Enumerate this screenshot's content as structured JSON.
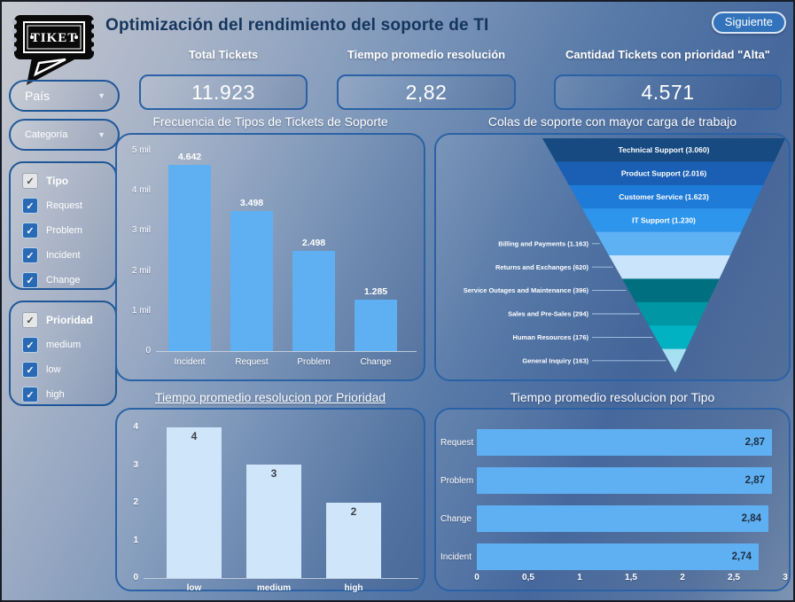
{
  "header": {
    "logo_text": "TIKET",
    "title": "Optimización del rendimiento del soporte de TI",
    "next_button_label": "Siguiente"
  },
  "kpis": [
    {
      "label": "Total Tickets",
      "value": "11.923"
    },
    {
      "label": "Tiempo promedio resolución",
      "value": "2,82"
    },
    {
      "label": "Cantidad Tickets con prioridad \"Alta\"",
      "value": "4.571"
    }
  ],
  "filters": {
    "pais_label": "País",
    "categoria_label": "Categoría",
    "tipo": {
      "header": "Tipo",
      "options": [
        "Request",
        "Problem",
        "Incident",
        "Change"
      ]
    },
    "prioridad": {
      "header": "Prioridad",
      "options": [
        "medium",
        "low",
        "high"
      ]
    }
  },
  "colors": {
    "bar_blue": "#5fb0f2",
    "bar_light": "#cfe6fa",
    "panel_border": "#2a62a5",
    "button_bg": "#3273bb"
  },
  "chart_data": [
    {
      "type": "bar",
      "title": "Frecuencia de Tipos de Tickets de Soporte",
      "categories": [
        "Incident",
        "Request",
        "Problem",
        "Change"
      ],
      "values": [
        4642,
        3498,
        2498,
        1285
      ],
      "value_labels": [
        "4.642",
        "3.498",
        "2.498",
        "1.285"
      ],
      "ytick_values": [
        5000,
        4000,
        3000,
        2000,
        1000,
        0
      ],
      "ytick_labels": [
        "5 mil",
        "4 mil",
        "3 mil",
        "2 mil",
        "1 mil",
        "0"
      ],
      "ylim": [
        0,
        5000
      ],
      "bar_color": "#5fb0f2",
      "value_label_color": "#ffffff"
    },
    {
      "type": "funnel",
      "title": "Colas de soporte con mayor carga de trabajo",
      "segments": [
        {
          "label": "Technical Support (3.060)",
          "value": 3060,
          "color": "#174a80",
          "label_inside": true
        },
        {
          "label": "Product Support (2.016)",
          "value": 2016,
          "color": "#1a5fb4",
          "label_inside": true
        },
        {
          "label": "Customer Service (1.623)",
          "value": 1623,
          "color": "#1e7bd7",
          "label_inside": true
        },
        {
          "label": "IT Support (1.230)",
          "value": 1230,
          "color": "#2d95ec",
          "label_inside": true
        },
        {
          "label": "Billing and Payments (1.163)",
          "value": 1163,
          "color": "#5eb2f4",
          "label_inside": false
        },
        {
          "label": "Returns and Exchanges (620)",
          "value": 620,
          "color": "#c9e4fb",
          "label_inside": false
        },
        {
          "label": "Service Outages and Maintenance (396)",
          "value": 396,
          "color": "#007080",
          "label_inside": false
        },
        {
          "label": "Sales and Pre-Sales (294)",
          "value": 294,
          "color": "#0096a3",
          "label_inside": false
        },
        {
          "label": "Human Resources (176)",
          "value": 176,
          "color": "#00b2c2",
          "label_inside": false
        },
        {
          "label": "General Inquiry (163)",
          "value": 163,
          "color": "#a6e0f2",
          "label_inside": false
        }
      ]
    },
    {
      "type": "bar",
      "title": "Tiempo promedio resolucion por Prioridad",
      "categories": [
        "low",
        "medium",
        "high"
      ],
      "values": [
        4,
        3,
        2
      ],
      "value_labels": [
        "4",
        "3",
        "2"
      ],
      "ytick_values": [
        0,
        1,
        2,
        3,
        4
      ],
      "ytick_labels": [
        "0",
        "1",
        "2",
        "3",
        "4"
      ],
      "ylim": [
        0,
        4
      ],
      "bar_color": "#cfe6fa",
      "value_label_color": "#3a4148"
    },
    {
      "type": "bar-horizontal",
      "title": "Tiempo promedio resolucion por Tipo",
      "categories": [
        "Request",
        "Problem",
        "Change",
        "Incident"
      ],
      "values": [
        2.87,
        2.87,
        2.84,
        2.74
      ],
      "value_labels": [
        "2,87",
        "2,87",
        "2,84",
        "2,74"
      ],
      "xtick_values": [
        0,
        0.5,
        1,
        1.5,
        2,
        2.5,
        3
      ],
      "xtick_labels": [
        "0",
        "0,5",
        "1",
        "1,5",
        "2",
        "2,5",
        "3"
      ],
      "xlim": [
        0,
        3
      ],
      "bar_color": "#5fb0f2",
      "value_label_color": "#1e2e44"
    }
  ]
}
